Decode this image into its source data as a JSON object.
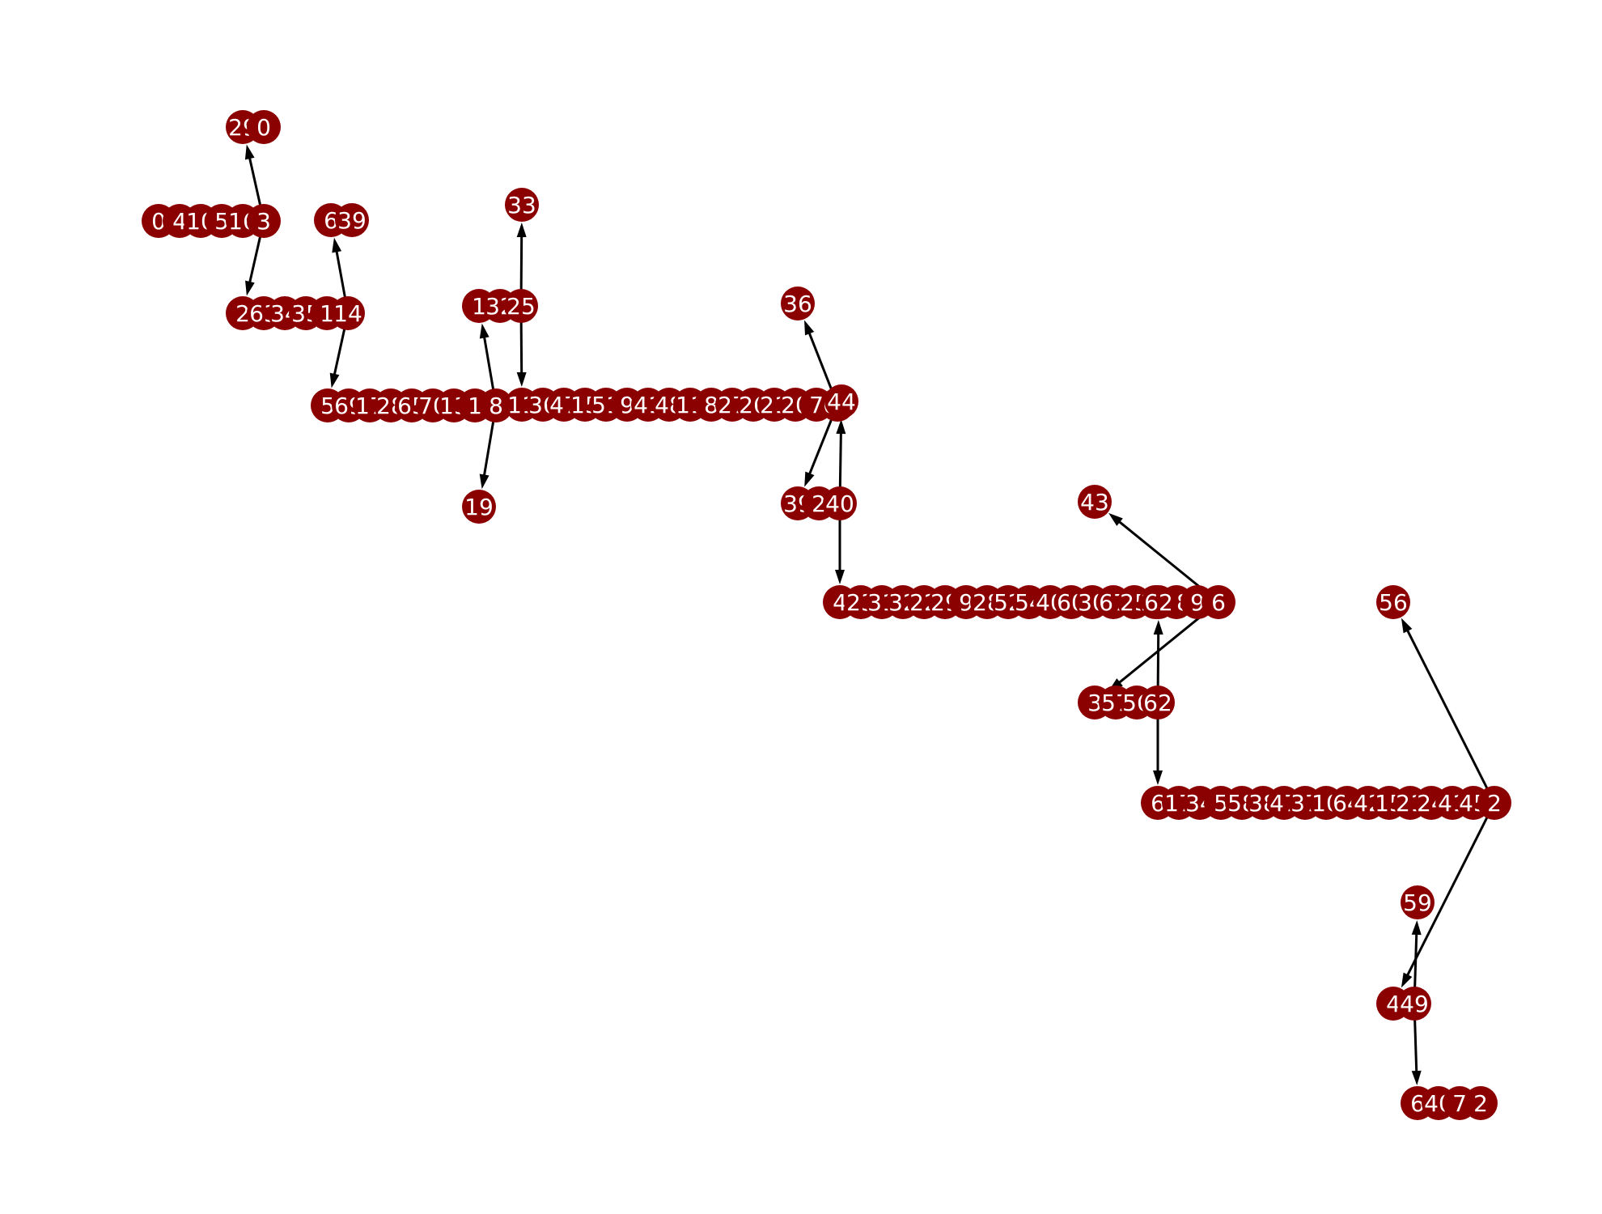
{
  "diagram": {
    "type": "tree",
    "node_color": "#8b0000",
    "label_color": "#ffffff",
    "edge_color": "#000000",
    "clusters": [
      {
        "id": "c1",
        "labels": [
          "0",
          "4",
          "10",
          "5",
          "16",
          "3"
        ]
      },
      {
        "id": "c2",
        "labels": [
          "29",
          "0"
        ]
      },
      {
        "id": "c3",
        "labels": [
          "2",
          "63",
          "34",
          "35",
          "1",
          "14"
        ]
      },
      {
        "id": "c4",
        "labels": [
          "6",
          "39"
        ]
      },
      {
        "id": "c5",
        "labels": [
          "5",
          "69",
          "17",
          "28",
          "65",
          "70",
          "13",
          "1",
          "8"
        ]
      },
      {
        "id": "c6",
        "labels": [
          "19"
        ]
      },
      {
        "id": "c7",
        "labels": [
          "1",
          "32",
          "25"
        ]
      },
      {
        "id": "c8",
        "labels": [
          "33"
        ]
      },
      {
        "id": "c9",
        "labels": [
          "11",
          "36",
          "47",
          "15",
          "51",
          "9",
          "41",
          "48",
          "11",
          "8",
          "27",
          "26",
          "21",
          "20",
          "7",
          "69"
        ]
      },
      {
        "id": "c10",
        "labels": [
          "36"
        ]
      },
      {
        "id": "c11",
        "labels": [
          "39",
          "2",
          "40"
        ]
      },
      {
        "id": "c12",
        "labels": [
          "44"
        ]
      },
      {
        "id": "c13",
        "labels": [
          "4",
          "23",
          "31",
          "32",
          "22",
          "29",
          "9",
          "28",
          "52",
          "54",
          "40",
          "60",
          "30",
          "67",
          "25",
          "23",
          "58",
          "9",
          "6"
        ]
      },
      {
        "id": "c14",
        "labels": [
          "43"
        ]
      },
      {
        "id": "c15",
        "labels": [
          "3",
          "57",
          "56",
          "62"
        ]
      },
      {
        "id": "c16",
        "labels": [
          "62"
        ]
      },
      {
        "id": "c17",
        "labels": [
          "6",
          "17",
          "34",
          "5",
          "58",
          "38",
          "47",
          "37",
          "10",
          "64",
          "42",
          "15",
          "21",
          "24",
          "41",
          "45",
          "2"
        ]
      },
      {
        "id": "c18",
        "labels": [
          "56"
        ]
      },
      {
        "id": "c19",
        "labels": [
          "4",
          "49"
        ]
      },
      {
        "id": "c20",
        "labels": [
          "59"
        ]
      },
      {
        "id": "c21",
        "labels": [
          "6",
          "40",
          "7",
          "2"
        ]
      }
    ],
    "edges": [
      {
        "from": "c1",
        "to": "c2"
      },
      {
        "from": "c1",
        "to": "c3"
      },
      {
        "from": "c3",
        "to": "c4"
      },
      {
        "from": "c3",
        "to": "c5"
      },
      {
        "from": "c5",
        "to": "c7"
      },
      {
        "from": "c5",
        "to": "c6"
      },
      {
        "from": "c7",
        "to": "c8"
      },
      {
        "from": "c7",
        "to": "c9"
      },
      {
        "from": "c9",
        "to": "c10"
      },
      {
        "from": "c9",
        "to": "c11"
      },
      {
        "from": "c11",
        "to": "c12"
      },
      {
        "from": "c11",
        "to": "c13"
      },
      {
        "from": "c13",
        "to": "c14"
      },
      {
        "from": "c13",
        "to": "c15"
      },
      {
        "from": "c15",
        "to": "c16"
      },
      {
        "from": "c15",
        "to": "c17"
      },
      {
        "from": "c17",
        "to": "c18"
      },
      {
        "from": "c17",
        "to": "c19"
      },
      {
        "from": "c19",
        "to": "c20"
      },
      {
        "from": "c19",
        "to": "c21"
      }
    ]
  }
}
